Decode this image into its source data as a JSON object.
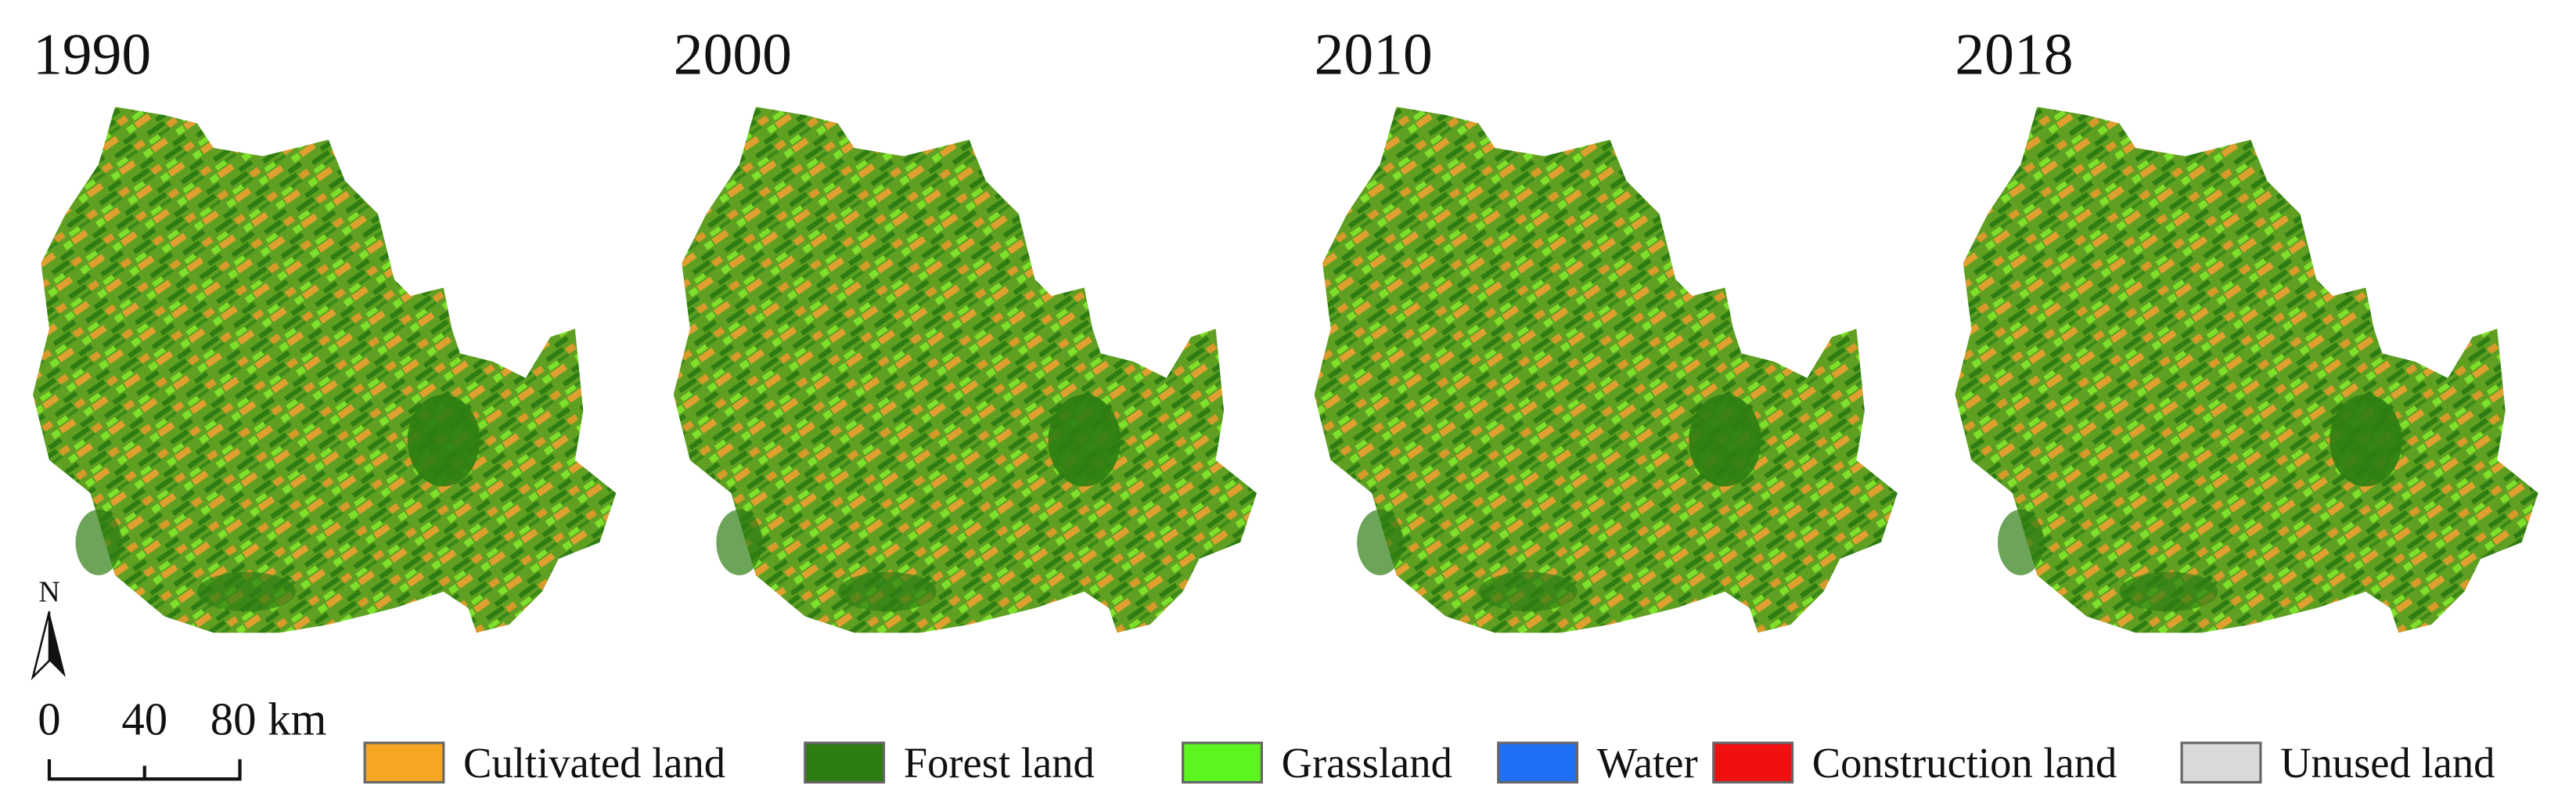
{
  "panels": [
    {
      "year": "1990"
    },
    {
      "year": "2000"
    },
    {
      "year": "2010"
    },
    {
      "year": "2018"
    }
  ],
  "legend": [
    {
      "label": "Cultivated land",
      "color": "#f5a623"
    },
    {
      "label": "Forest land",
      "color": "#2e7d12"
    },
    {
      "label": "Grassland",
      "color": "#5cf51f"
    },
    {
      "label": "Water",
      "color": "#1f6ff5"
    },
    {
      "label": "Construction land",
      "color": "#f01010"
    },
    {
      "label": "Unused land",
      "color": "#d9d9d9"
    }
  ],
  "scale_bar": {
    "labels": [
      "0",
      "40",
      "80 km"
    ]
  },
  "north_arrow": {
    "label": "N"
  }
}
